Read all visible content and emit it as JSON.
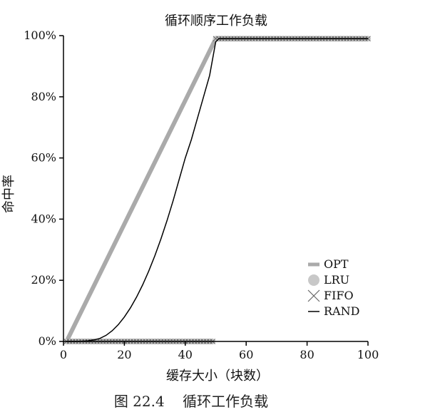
{
  "chart_data": {
    "type": "line",
    "title": "循环顺序工作负载",
    "xlabel": "缓存大小（块数）",
    "ylabel": "命中率",
    "xlim": [
      0,
      100
    ],
    "ylim": [
      0,
      100
    ],
    "x_ticks": [
      "0",
      "20",
      "40",
      "60",
      "80",
      "100"
    ],
    "y_ticks": [
      "0%",
      "20%",
      "40%",
      "60%",
      "80%",
      "100%"
    ],
    "legend_position": "bottom-right",
    "grid": false,
    "series": [
      {
        "name": "OPT",
        "style": "thick-gray-line",
        "color": "#aaaaaa",
        "points": [
          [
            1,
            0
          ],
          [
            50,
            99
          ],
          [
            100,
            99
          ]
        ]
      },
      {
        "name": "LRU",
        "style": "gray-circle-markers",
        "color": "#c8c8c8",
        "points": [
          [
            1,
            0
          ],
          [
            2,
            0
          ],
          [
            3,
            0
          ],
          [
            4,
            0
          ],
          [
            5,
            0
          ],
          [
            6,
            0
          ],
          [
            7,
            0
          ],
          [
            8,
            0
          ],
          [
            9,
            0
          ],
          [
            10,
            0
          ],
          [
            11,
            0
          ],
          [
            12,
            0
          ],
          [
            13,
            0
          ],
          [
            14,
            0
          ],
          [
            15,
            0
          ],
          [
            16,
            0
          ],
          [
            17,
            0
          ],
          [
            18,
            0
          ],
          [
            19,
            0
          ],
          [
            20,
            0
          ],
          [
            21,
            0
          ],
          [
            22,
            0
          ],
          [
            23,
            0
          ],
          [
            24,
            0
          ],
          [
            25,
            0
          ],
          [
            26,
            0
          ],
          [
            27,
            0
          ],
          [
            28,
            0
          ],
          [
            29,
            0
          ],
          [
            30,
            0
          ],
          [
            31,
            0
          ],
          [
            32,
            0
          ],
          [
            33,
            0
          ],
          [
            34,
            0
          ],
          [
            35,
            0
          ],
          [
            36,
            0
          ],
          [
            37,
            0
          ],
          [
            38,
            0
          ],
          [
            39,
            0
          ],
          [
            40,
            0
          ],
          [
            41,
            0
          ],
          [
            42,
            0
          ],
          [
            43,
            0
          ],
          [
            44,
            0
          ],
          [
            45,
            0
          ],
          [
            46,
            0
          ],
          [
            47,
            0
          ],
          [
            48,
            0
          ],
          [
            49,
            0
          ],
          [
            50,
            99
          ],
          [
            51,
            99
          ],
          [
            52,
            99
          ],
          [
            53,
            99
          ],
          [
            54,
            99
          ],
          [
            55,
            99
          ],
          [
            56,
            99
          ],
          [
            57,
            99
          ],
          [
            58,
            99
          ],
          [
            59,
            99
          ],
          [
            60,
            99
          ],
          [
            61,
            99
          ],
          [
            62,
            99
          ],
          [
            63,
            99
          ],
          [
            64,
            99
          ],
          [
            65,
            99
          ],
          [
            66,
            99
          ],
          [
            67,
            99
          ],
          [
            68,
            99
          ],
          [
            69,
            99
          ],
          [
            70,
            99
          ],
          [
            71,
            99
          ],
          [
            72,
            99
          ],
          [
            73,
            99
          ],
          [
            74,
            99
          ],
          [
            75,
            99
          ],
          [
            76,
            99
          ],
          [
            77,
            99
          ],
          [
            78,
            99
          ],
          [
            79,
            99
          ],
          [
            80,
            99
          ],
          [
            81,
            99
          ],
          [
            82,
            99
          ],
          [
            83,
            99
          ],
          [
            84,
            99
          ],
          [
            85,
            99
          ],
          [
            86,
            99
          ],
          [
            87,
            99
          ],
          [
            88,
            99
          ],
          [
            89,
            99
          ],
          [
            90,
            99
          ],
          [
            91,
            99
          ],
          [
            92,
            99
          ],
          [
            93,
            99
          ],
          [
            94,
            99
          ],
          [
            95,
            99
          ],
          [
            96,
            99
          ],
          [
            97,
            99
          ],
          [
            98,
            99
          ],
          [
            99,
            99
          ],
          [
            100,
            99
          ]
        ]
      },
      {
        "name": "FIFO",
        "style": "x-markers",
        "color": "#666666",
        "points": [
          [
            1,
            0
          ],
          [
            2,
            0
          ],
          [
            3,
            0
          ],
          [
            4,
            0
          ],
          [
            5,
            0
          ],
          [
            6,
            0
          ],
          [
            7,
            0
          ],
          [
            8,
            0
          ],
          [
            9,
            0
          ],
          [
            10,
            0
          ],
          [
            11,
            0
          ],
          [
            12,
            0
          ],
          [
            13,
            0
          ],
          [
            14,
            0
          ],
          [
            15,
            0
          ],
          [
            16,
            0
          ],
          [
            17,
            0
          ],
          [
            18,
            0
          ],
          [
            19,
            0
          ],
          [
            20,
            0
          ],
          [
            21,
            0
          ],
          [
            22,
            0
          ],
          [
            23,
            0
          ],
          [
            24,
            0
          ],
          [
            25,
            0
          ],
          [
            26,
            0
          ],
          [
            27,
            0
          ],
          [
            28,
            0
          ],
          [
            29,
            0
          ],
          [
            30,
            0
          ],
          [
            31,
            0
          ],
          [
            32,
            0
          ],
          [
            33,
            0
          ],
          [
            34,
            0
          ],
          [
            35,
            0
          ],
          [
            36,
            0
          ],
          [
            37,
            0
          ],
          [
            38,
            0
          ],
          [
            39,
            0
          ],
          [
            40,
            0
          ],
          [
            41,
            0
          ],
          [
            42,
            0
          ],
          [
            43,
            0
          ],
          [
            44,
            0
          ],
          [
            45,
            0
          ],
          [
            46,
            0
          ],
          [
            47,
            0
          ],
          [
            48,
            0
          ],
          [
            49,
            0
          ],
          [
            50,
            99
          ],
          [
            51,
            99
          ],
          [
            52,
            99
          ],
          [
            53,
            99
          ],
          [
            54,
            99
          ],
          [
            55,
            99
          ],
          [
            56,
            99
          ],
          [
            57,
            99
          ],
          [
            58,
            99
          ],
          [
            59,
            99
          ],
          [
            60,
            99
          ],
          [
            61,
            99
          ],
          [
            62,
            99
          ],
          [
            63,
            99
          ],
          [
            64,
            99
          ],
          [
            65,
            99
          ],
          [
            66,
            99
          ],
          [
            67,
            99
          ],
          [
            68,
            99
          ],
          [
            69,
            99
          ],
          [
            70,
            99
          ],
          [
            71,
            99
          ],
          [
            72,
            99
          ],
          [
            73,
            99
          ],
          [
            74,
            99
          ],
          [
            75,
            99
          ],
          [
            76,
            99
          ],
          [
            77,
            99
          ],
          [
            78,
            99
          ],
          [
            79,
            99
          ],
          [
            80,
            99
          ],
          [
            81,
            99
          ],
          [
            82,
            99
          ],
          [
            83,
            99
          ],
          [
            84,
            99
          ],
          [
            85,
            99
          ],
          [
            86,
            99
          ],
          [
            87,
            99
          ],
          [
            88,
            99
          ],
          [
            89,
            99
          ],
          [
            90,
            99
          ],
          [
            91,
            99
          ],
          [
            92,
            99
          ],
          [
            93,
            99
          ],
          [
            94,
            99
          ],
          [
            95,
            99
          ],
          [
            96,
            99
          ],
          [
            97,
            99
          ],
          [
            98,
            99
          ],
          [
            99,
            99
          ],
          [
            100,
            99
          ]
        ]
      },
      {
        "name": "RAND",
        "style": "thin-black-line",
        "color": "#000000",
        "points": [
          [
            1,
            0
          ],
          [
            5,
            0
          ],
          [
            8,
            0.2
          ],
          [
            10,
            0.5
          ],
          [
            12,
            1
          ],
          [
            14,
            2
          ],
          [
            16,
            3.5
          ],
          [
            18,
            5.5
          ],
          [
            20,
            8
          ],
          [
            22,
            11
          ],
          [
            24,
            14.5
          ],
          [
            26,
            18.5
          ],
          [
            28,
            23
          ],
          [
            30,
            28
          ],
          [
            32,
            33.5
          ],
          [
            34,
            39.5
          ],
          [
            36,
            46
          ],
          [
            38,
            53
          ],
          [
            40,
            60
          ],
          [
            42,
            66
          ],
          [
            44,
            73
          ],
          [
            46,
            80
          ],
          [
            48,
            87
          ],
          [
            50,
            98
          ],
          [
            51,
            99
          ],
          [
            52,
            99
          ],
          [
            53,
            99
          ],
          [
            54,
            99
          ],
          [
            55,
            99
          ],
          [
            56,
            99
          ],
          [
            57,
            99
          ],
          [
            58,
            99
          ],
          [
            59,
            99
          ],
          [
            60,
            99
          ],
          [
            62,
            99
          ],
          [
            64,
            99
          ],
          [
            66,
            99
          ],
          [
            68,
            99
          ],
          [
            70,
            99
          ],
          [
            72,
            99
          ],
          [
            74,
            99
          ],
          [
            76,
            99
          ],
          [
            78,
            99
          ],
          [
            80,
            99
          ],
          [
            82,
            99
          ],
          [
            84,
            99
          ],
          [
            86,
            99
          ],
          [
            88,
            99
          ],
          [
            90,
            99
          ],
          [
            92,
            99
          ],
          [
            94,
            99
          ],
          [
            96,
            99
          ],
          [
            98,
            99
          ],
          [
            100,
            99
          ]
        ]
      }
    ]
  },
  "caption": "图 22.4    循环工作负载"
}
